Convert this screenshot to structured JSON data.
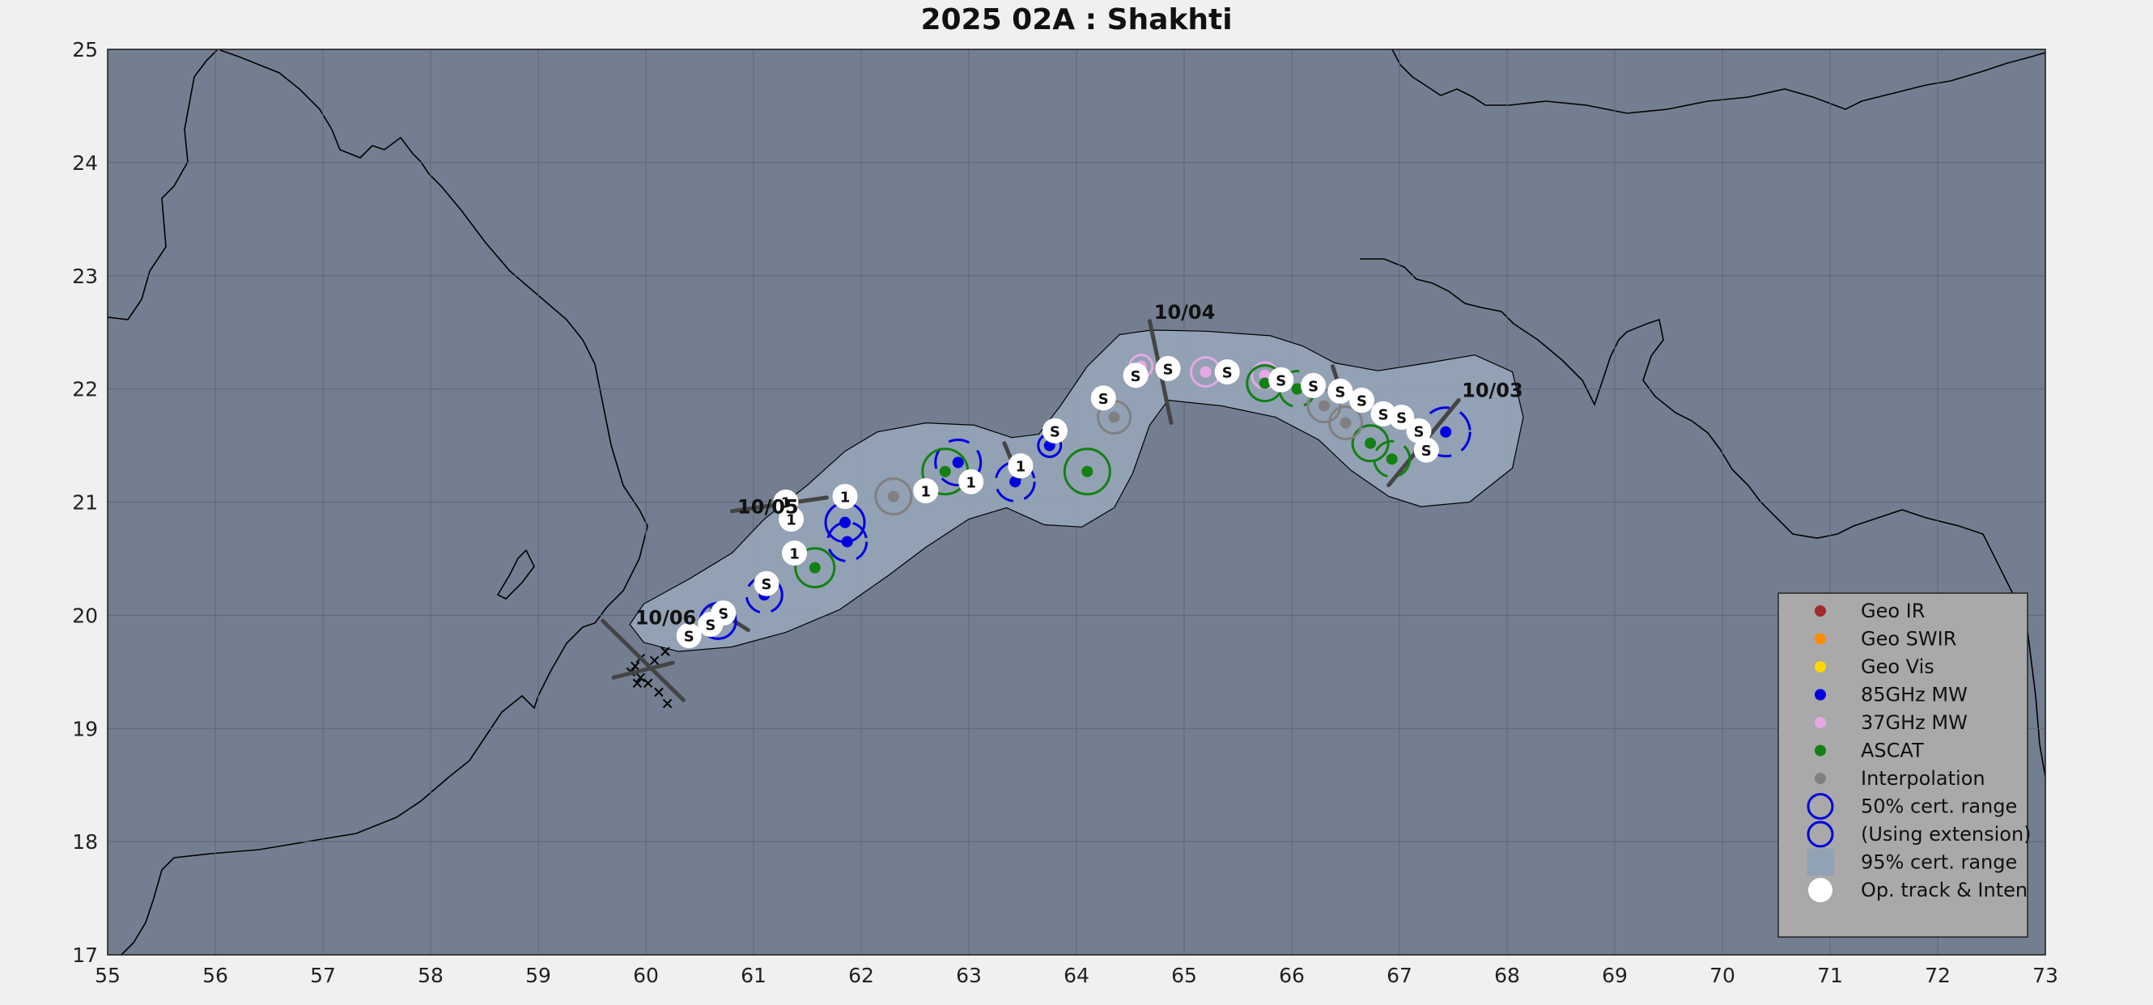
{
  "title": "2025  02A :  Shakhti",
  "colors": {
    "figure_bg": "#f0f0f0",
    "ocean": "#737f90",
    "cone": "#93a3b6",
    "grid": "#5d6676",
    "coast": "#000000",
    "geo_ir": "#a52a2a",
    "geo_swir": "#ff8c00",
    "geo_vis": "#ffd700",
    "mw85": "#0000e0",
    "mw37": "#e6a8e6",
    "ascat": "#138013",
    "interp": "#808080",
    "legend_bg": "#a9a9a9"
  },
  "map": {
    "lon_range": [
      55,
      73
    ],
    "lat_range": [
      17,
      25
    ],
    "x_ticks": [
      55,
      56,
      57,
      58,
      59,
      60,
      61,
      62,
      63,
      64,
      65,
      66,
      67,
      68,
      69,
      70,
      71,
      72,
      73
    ],
    "y_ticks": [
      17,
      18,
      19,
      20,
      21,
      22,
      23,
      24,
      25
    ],
    "grid": true
  },
  "cone_polygon": [
    [
      60.3,
      19.68
    ],
    [
      59.98,
      19.76
    ],
    [
      59.85,
      19.92
    ],
    [
      59.98,
      20.1
    ],
    [
      60.4,
      20.32
    ],
    [
      60.8,
      20.55
    ],
    [
      61.1,
      20.85
    ],
    [
      61.5,
      21.15
    ],
    [
      61.85,
      21.45
    ],
    [
      62.15,
      21.62
    ],
    [
      62.6,
      21.7
    ],
    [
      63.05,
      21.68
    ],
    [
      63.4,
      21.57
    ],
    [
      63.65,
      21.6
    ],
    [
      63.85,
      21.85
    ],
    [
      64.1,
      22.2
    ],
    [
      64.4,
      22.48
    ],
    [
      64.7,
      22.52
    ],
    [
      65.2,
      22.51
    ],
    [
      65.8,
      22.47
    ],
    [
      66.1,
      22.38
    ],
    [
      66.4,
      22.23
    ],
    [
      66.8,
      22.16
    ],
    [
      67.2,
      22.22
    ],
    [
      67.7,
      22.3
    ],
    [
      68.05,
      22.15
    ],
    [
      68.15,
      21.75
    ],
    [
      68.05,
      21.3
    ],
    [
      67.65,
      21.0
    ],
    [
      67.2,
      20.96
    ],
    [
      66.9,
      21.05
    ],
    [
      66.55,
      21.28
    ],
    [
      66.25,
      21.55
    ],
    [
      65.85,
      21.75
    ],
    [
      65.35,
      21.85
    ],
    [
      64.85,
      21.9
    ],
    [
      64.68,
      21.68
    ],
    [
      64.52,
      21.25
    ],
    [
      64.35,
      20.95
    ],
    [
      64.05,
      20.78
    ],
    [
      63.7,
      20.8
    ],
    [
      63.35,
      20.95
    ],
    [
      63.0,
      20.85
    ],
    [
      62.6,
      20.6
    ],
    [
      62.25,
      20.35
    ],
    [
      61.8,
      20.05
    ],
    [
      61.3,
      19.85
    ],
    [
      60.8,
      19.72
    ]
  ],
  "fixes_85ghz": [
    [
      67.43,
      21.62
    ],
    [
      62.9,
      21.35
    ],
    [
      61.85,
      20.82
    ],
    [
      61.87,
      20.65
    ],
    [
      61.1,
      20.18
    ],
    [
      60.67,
      19.95
    ],
    [
      63.43,
      21.18
    ],
    [
      63.75,
      21.5
    ]
  ],
  "fixes_37ghz": [
    [
      64.6,
      22.2
    ],
    [
      65.2,
      22.15
    ],
    [
      65.75,
      22.12
    ]
  ],
  "fixes_ascat": [
    [
      66.73,
      21.52
    ],
    [
      66.93,
      21.38
    ],
    [
      65.75,
      22.05
    ],
    [
      66.05,
      22.0
    ],
    [
      64.1,
      21.27
    ],
    [
      62.78,
      21.27
    ],
    [
      61.57,
      20.42
    ]
  ],
  "fixes_interp": [
    [
      66.5,
      21.7
    ],
    [
      66.3,
      21.85
    ],
    [
      64.35,
      21.75
    ],
    [
      62.3,
      21.05
    ]
  ],
  "track_points": [
    {
      "lon": 67.25,
      "lat": 21.46,
      "label": "S"
    },
    {
      "lon": 67.18,
      "lat": 21.63,
      "label": "S"
    },
    {
      "lon": 67.02,
      "lat": 21.75,
      "label": "S"
    },
    {
      "lon": 66.85,
      "lat": 21.78,
      "label": "S"
    },
    {
      "lon": 66.65,
      "lat": 21.9,
      "label": "S"
    },
    {
      "lon": 66.45,
      "lat": 21.98,
      "label": "S"
    },
    {
      "lon": 66.2,
      "lat": 22.03,
      "label": "S"
    },
    {
      "lon": 65.9,
      "lat": 22.08,
      "label": "S"
    },
    {
      "lon": 65.4,
      "lat": 22.15,
      "label": "S"
    },
    {
      "lon": 64.85,
      "lat": 22.18,
      "label": "S"
    },
    {
      "lon": 64.55,
      "lat": 22.12,
      "label": "S"
    },
    {
      "lon": 64.25,
      "lat": 21.92,
      "label": "S"
    },
    {
      "lon": 63.8,
      "lat": 21.63,
      "label": "S"
    },
    {
      "lon": 63.48,
      "lat": 21.32,
      "label": "1"
    },
    {
      "lon": 63.02,
      "lat": 21.18,
      "label": "1"
    },
    {
      "lon": 62.6,
      "lat": 21.1,
      "label": "1"
    },
    {
      "lon": 61.85,
      "lat": 21.05,
      "label": "1"
    },
    {
      "lon": 61.3,
      "lat": 21.0,
      "label": "1"
    },
    {
      "lon": 61.35,
      "lat": 20.85,
      "label": "1"
    },
    {
      "lon": 61.38,
      "lat": 20.55,
      "label": "1"
    },
    {
      "lon": 61.12,
      "lat": 20.28,
      "label": "S"
    },
    {
      "lon": 60.72,
      "lat": 20.02,
      "label": "S"
    },
    {
      "lon": 60.6,
      "lat": 19.92,
      "label": "S"
    },
    {
      "lon": 60.4,
      "lat": 19.82,
      "label": "S"
    }
  ],
  "past_track": [
    [
      59.95,
      19.62
    ],
    [
      59.9,
      19.55
    ],
    [
      59.86,
      19.5
    ],
    [
      59.95,
      19.45
    ],
    [
      59.92,
      19.4
    ],
    [
      60.02,
      19.4
    ],
    [
      60.12,
      19.32
    ],
    [
      60.2,
      19.22
    ],
    [
      60.18,
      19.68
    ],
    [
      60.08,
      19.6
    ]
  ],
  "date_labels": [
    {
      "text": "10/03",
      "lon": 67.58,
      "lat": 21.93
    },
    {
      "text": "10/04",
      "lon": 64.72,
      "lat": 22.62
    },
    {
      "text": "10/05",
      "lon": 60.85,
      "lat": 20.9
    },
    {
      "text": "10/06",
      "lon": 59.9,
      "lat": 19.92
    }
  ],
  "legend": [
    {
      "label": "Geo IR",
      "marker": "dot",
      "color_key": "geo_ir"
    },
    {
      "label": "Geo SWIR",
      "marker": "dot",
      "color_key": "geo_swir"
    },
    {
      "label": "Geo Vis",
      "marker": "dot",
      "color_key": "geo_vis"
    },
    {
      "label": "85GHz MW",
      "marker": "dot",
      "color_key": "mw85"
    },
    {
      "label": "37GHz MW",
      "marker": "dot",
      "color_key": "mw37"
    },
    {
      "label": "ASCAT",
      "marker": "dot",
      "color_key": "ascat"
    },
    {
      "label": "Interpolation",
      "marker": "dot",
      "color_key": "interp"
    },
    {
      "label": "50% cert. range",
      "marker": "ring",
      "color_key": "mw85"
    },
    {
      "label": "(Using extension)",
      "marker": "ring",
      "color_key": "mw85"
    },
    {
      "label": "95% cert. range",
      "marker": "square",
      "color_key": "cone"
    },
    {
      "label": "Op. track & Inten",
      "marker": "white-dot",
      "color_key": "figure_bg"
    }
  ]
}
